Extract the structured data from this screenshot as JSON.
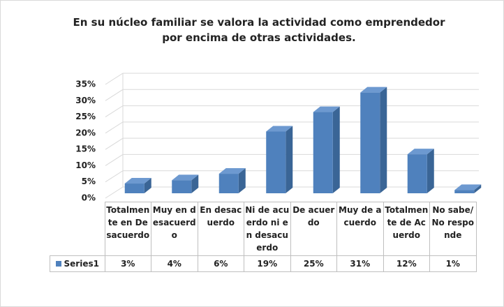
{
  "chart_data": {
    "type": "bar3d",
    "title": "En su núcleo familiar se valora la actividad como emprendedor por encima de otras actividades.",
    "categories": [
      "Totalmente en Desacuerdo",
      "Muy en desacuerdo",
      "En desacuerdo",
      "Ni de acuerdo ni en desacuerdo",
      "De acuerdo",
      "Muy de acuerdo",
      "Totalmente de Acuerdo",
      "No sabe/ No responde"
    ],
    "series": [
      {
        "name": "Series1",
        "color": "#4f81bd",
        "values": [
          3,
          4,
          6,
          19,
          25,
          31,
          12,
          1
        ],
        "value_labels": [
          "3%",
          "4%",
          "6%",
          "19%",
          "25%",
          "31%",
          "12%",
          "1%"
        ]
      }
    ],
    "ylim": [
      0,
      35
    ],
    "yticks": [
      {
        "value": 0,
        "label": "0%"
      },
      {
        "value": 5,
        "label": "5%"
      },
      {
        "value": 10,
        "label": "10%"
      },
      {
        "value": 15,
        "label": "15%"
      },
      {
        "value": 20,
        "label": "20%"
      },
      {
        "value": 25,
        "label": "25%"
      },
      {
        "value": 30,
        "label": "30%"
      },
      {
        "value": 35,
        "label": "35%"
      }
    ],
    "grid": true,
    "data_table": true
  }
}
